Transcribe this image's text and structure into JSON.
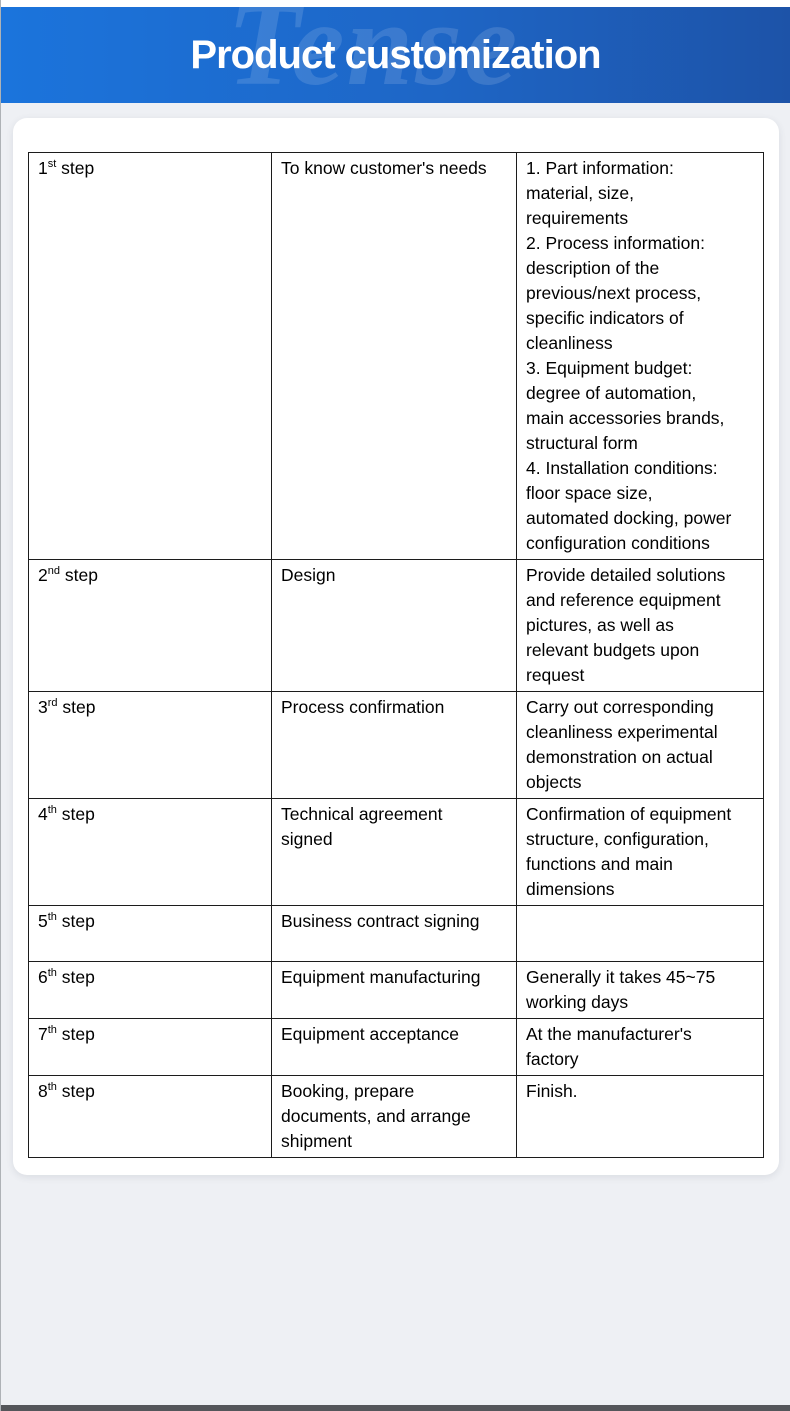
{
  "page": {
    "banner_title": "Product customization",
    "watermark": "Tense",
    "colors": {
      "banner_gradient_left": "#1b74dc",
      "banner_gradient_right": "#1d53a8",
      "content_background": "#eef0f4",
      "card_background": "#ffffff",
      "table_border": "#1c1c1c",
      "bottom_bar": "#54565a"
    }
  },
  "table": {
    "rows": [
      {
        "step": {
          "num": "1",
          "suffix": "st",
          "word": "step"
        },
        "process": "To know customer's needs",
        "details": "1. Part information:\nmaterial, size,\nrequirements\n2. Process information:\ndescription of the\nprevious/next process,\nspecific indicators of\ncleanliness\n3. Equipment budget:\ndegree of automation,\nmain accessories brands,\nstructural form\n4. Installation conditions:\nfloor space size,\nautomated docking, power\nconfiguration conditions"
      },
      {
        "step": {
          "num": "2",
          "suffix": "nd",
          "word": "step"
        },
        "process": "Design",
        "details": "Provide detailed solutions\nand reference equipment\npictures, as well as\nrelevant budgets upon\nrequest"
      },
      {
        "step": {
          "num": "3",
          "suffix": "rd",
          "word": "step"
        },
        "process": "Process confirmation",
        "details": "Carry out corresponding\ncleanliness experimental\ndemonstration on actual\nobjects"
      },
      {
        "step": {
          "num": "4",
          "suffix": "th",
          "word": "step"
        },
        "process": "Technical agreement\nsigned",
        "details": "Confirmation of equipment\nstructure, configuration,\nfunctions and main\ndimensions"
      },
      {
        "step": {
          "num": "5",
          "suffix": "th",
          "word": "step"
        },
        "process": "Business contract signing",
        "details": ""
      },
      {
        "step": {
          "num": "6",
          "suffix": "th",
          "word": "step"
        },
        "process": "Equipment manufacturing",
        "details": "Generally it takes 45~75\nworking days"
      },
      {
        "step": {
          "num": "7",
          "suffix": "th",
          "word": "step"
        },
        "process": "Equipment acceptance",
        "details": "At the manufacturer's\nfactory"
      },
      {
        "step": {
          "num": "8",
          "suffix": "th",
          "word": "step"
        },
        "process": "Booking, prepare\ndocuments, and arrange\nshipment",
        "details": "Finish."
      }
    ]
  }
}
